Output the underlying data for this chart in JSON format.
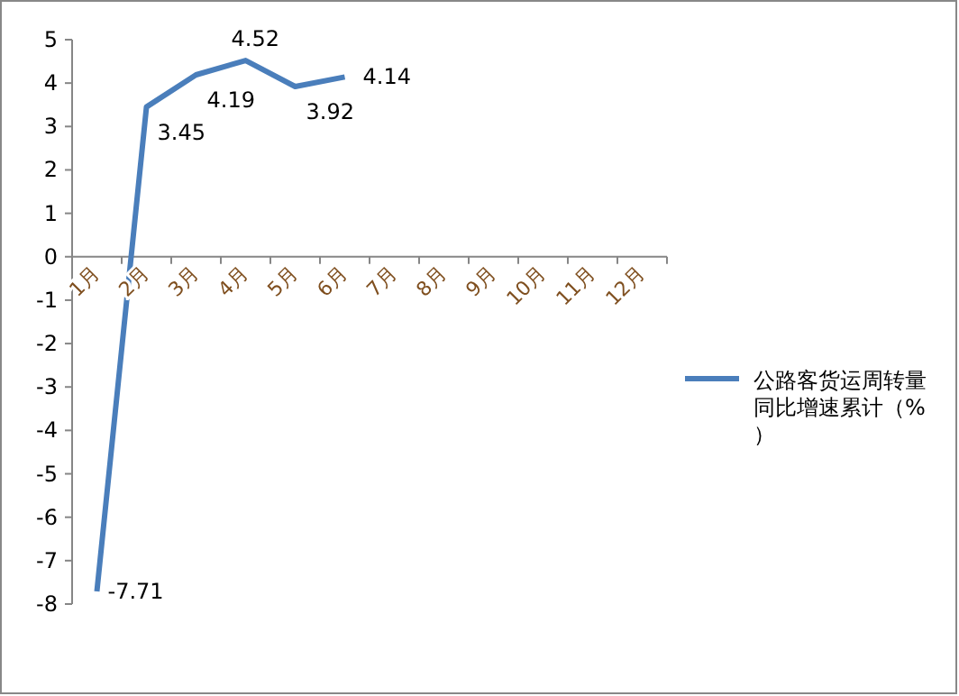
{
  "chart_data": {
    "type": "line",
    "categories": [
      "1月",
      "2月",
      "3月",
      "4月",
      "5月",
      "6月",
      "7月",
      "8月",
      "9月",
      "10月",
      "11月",
      "12月"
    ],
    "series": [
      {
        "name": "公路客货运周转量同比增速累计（%）",
        "color": "#4a7ebb",
        "values": [
          -7.71,
          3.45,
          4.19,
          4.52,
          3.92,
          4.14,
          null,
          null,
          null,
          null,
          null,
          null
        ]
      }
    ],
    "ylim": [
      -8,
      5
    ],
    "yticks": [
      -8,
      -7,
      -6,
      -5,
      -4,
      -3,
      -2,
      -1,
      0,
      1,
      2,
      3,
      4,
      5
    ],
    "data_labels": true,
    "legend": "right",
    "grid": false,
    "marker": "none",
    "line_style": "solid"
  }
}
